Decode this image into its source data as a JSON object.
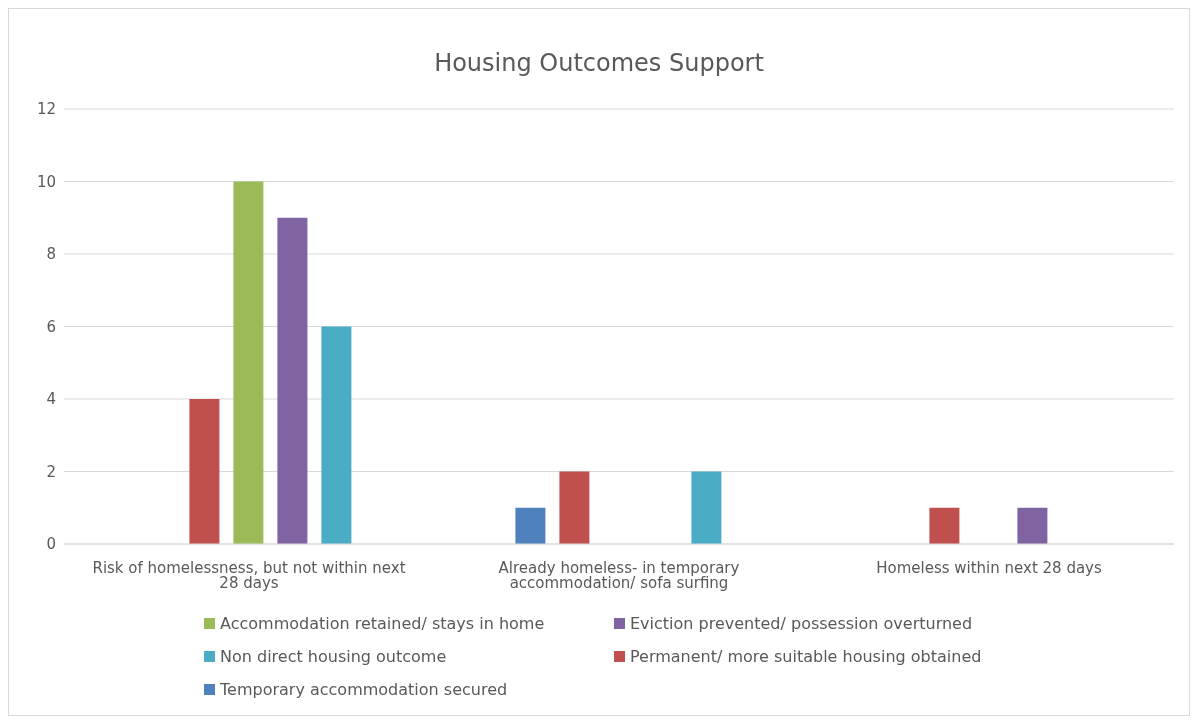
{
  "chart_data": {
    "type": "bar",
    "title": "Housing Outcomes Support",
    "categories": [
      "Risk of homelessness, but not within next 28 days",
      "Already homeless- in temporary accommodation/ sofa surfing",
      "Homeless within next 28 days"
    ],
    "series": [
      {
        "name": "Temporary accommodation secured",
        "color": "#4f81bd",
        "values": [
          0,
          1,
          0
        ]
      },
      {
        "name": "Permanent/ more suitable housing obtained",
        "color": "#c0504d",
        "values": [
          4,
          2,
          1
        ]
      },
      {
        "name": "Accommodation retained/ stays in home",
        "color": "#9bbb59",
        "values": [
          10,
          0,
          0
        ]
      },
      {
        "name": "Eviction prevented/ possession overturned",
        "color": "#8064a2",
        "values": [
          9,
          0,
          1
        ]
      },
      {
        "name": "Non direct housing outcome",
        "color": "#4bacc6",
        "values": [
          6,
          2,
          0
        ]
      }
    ],
    "ylim": [
      0,
      12
    ],
    "yticks": [
      0,
      2,
      4,
      6,
      8,
      10,
      12
    ],
    "grid": "y",
    "legend": "bottom"
  }
}
